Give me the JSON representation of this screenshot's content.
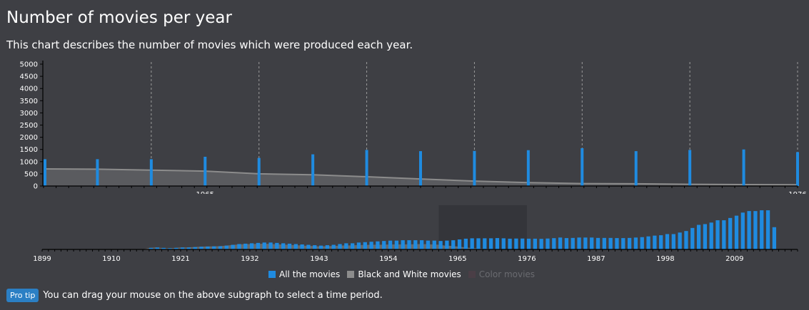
{
  "header": {
    "title": "Number of movies per year",
    "subtitle": "This chart describes the number of movies which were produced each year."
  },
  "colors": {
    "all_movies": "#1f8be0",
    "black_and_white": "#8c8c8c",
    "color_movies": "#4a3e46",
    "background": "#3e3f44"
  },
  "legend": {
    "items": [
      {
        "label": "All the movies",
        "color": "#1f8be0",
        "enabled": true
      },
      {
        "label": "Black and White movies",
        "color": "#8c8c8c",
        "enabled": true
      },
      {
        "label": "Color movies",
        "color": "#4a3e46",
        "enabled": false
      }
    ]
  },
  "pro_tip": {
    "badge": "Pro tip",
    "text": "You can drag your mouse on the above subgraph to select a time period."
  },
  "chart_data": [
    {
      "type": "bar",
      "name": "main",
      "y_ticks": [
        "0",
        "500",
        "1000",
        "1500",
        "2000",
        "2500",
        "3000",
        "3500",
        "4000",
        "4500",
        "5000"
      ],
      "ylim": [
        0,
        5000
      ],
      "x_tick_labels": [
        "1965",
        "1976"
      ],
      "selected_range": [
        1962,
        1976
      ],
      "years": [
        1962,
        1963,
        1964,
        1965,
        1966,
        1967,
        1968,
        1969,
        1970,
        1971,
        1972,
        1973,
        1974,
        1975,
        1976
      ],
      "series": [
        {
          "name": "All the movies",
          "values": [
            1100,
            1100,
            1100,
            1200,
            1150,
            1300,
            1480,
            1430,
            1440,
            1470,
            1550,
            1430,
            1480,
            1500,
            1390
          ]
        },
        {
          "name": "Black and White movies",
          "values": [
            700,
            690,
            650,
            610,
            500,
            460,
            380,
            290,
            200,
            140,
            100,
            90,
            70,
            60,
            50
          ]
        }
      ],
      "grid": "vertical dashed"
    },
    {
      "type": "bar",
      "name": "navigator",
      "x_tick_labels": [
        "1899",
        "1910",
        "1921",
        "1932",
        "1943",
        "1954",
        "1965",
        "1976",
        "1987",
        "1998",
        "2009"
      ],
      "xlim": [
        1899,
        2019
      ],
      "selection": [
        1962,
        1976
      ],
      "years_start": 1899,
      "series": [
        {
          "name": "All the movies",
          "values": [
            0,
            0,
            0,
            0,
            0,
            0,
            0,
            0,
            0,
            0,
            0,
            0,
            0,
            0,
            0,
            0,
            0,
            200,
            250,
            200,
            150,
            200,
            250,
            250,
            300,
            350,
            380,
            400,
            420,
            500,
            600,
            700,
            750,
            800,
            850,
            900,
            900,
            850,
            800,
            750,
            700,
            650,
            600,
            550,
            500,
            550,
            600,
            700,
            800,
            800,
            900,
            950,
            1000,
            1050,
            1100,
            1150,
            1150,
            1200,
            1200,
            1200,
            1200,
            1150,
            1150,
            1100,
            1150,
            1200,
            1300,
            1400,
            1450,
            1450,
            1450,
            1450,
            1480,
            1450,
            1400,
            1420,
            1420,
            1400,
            1400,
            1380,
            1420,
            1470,
            1550,
            1480,
            1500,
            1550,
            1550,
            1550,
            1500,
            1500,
            1500,
            1480,
            1480,
            1500,
            1550,
            1600,
            1700,
            1800,
            1850,
            2000,
            2000,
            2200,
            2400,
            2800,
            3200,
            3300,
            3500,
            3800,
            3800,
            4100,
            4400,
            4800,
            5000,
            5000,
            5100,
            5100,
            2900
          ]
        },
        {
          "name": "Black and White movies",
          "values": [
            0,
            0,
            0,
            0,
            0,
            0,
            0,
            0,
            0,
            0,
            0,
            0,
            0,
            0,
            0,
            0,
            0,
            200,
            250,
            200,
            150,
            200,
            250,
            250,
            300,
            350,
            380,
            400,
            420,
            480,
            560,
            640,
            680,
            700,
            720,
            740,
            720,
            680,
            640,
            600,
            560,
            520,
            480,
            440,
            400,
            420,
            440,
            480,
            520,
            520,
            560,
            580,
            600,
            610,
            620,
            640,
            650,
            650,
            660,
            670,
            700,
            690,
            650,
            610,
            500,
            460,
            380,
            290,
            200,
            140,
            100,
            90,
            70,
            60,
            50,
            40,
            40,
            35,
            30,
            30,
            30,
            30,
            30,
            30,
            30,
            30,
            30,
            30,
            30,
            30,
            30,
            30,
            30,
            30,
            30,
            30,
            30,
            30,
            30,
            30,
            30,
            30,
            30,
            30,
            30,
            30,
            30,
            30,
            30,
            30,
            30,
            30,
            30,
            30,
            30,
            30,
            30,
            30,
            30,
            30
          ]
        }
      ]
    }
  ]
}
